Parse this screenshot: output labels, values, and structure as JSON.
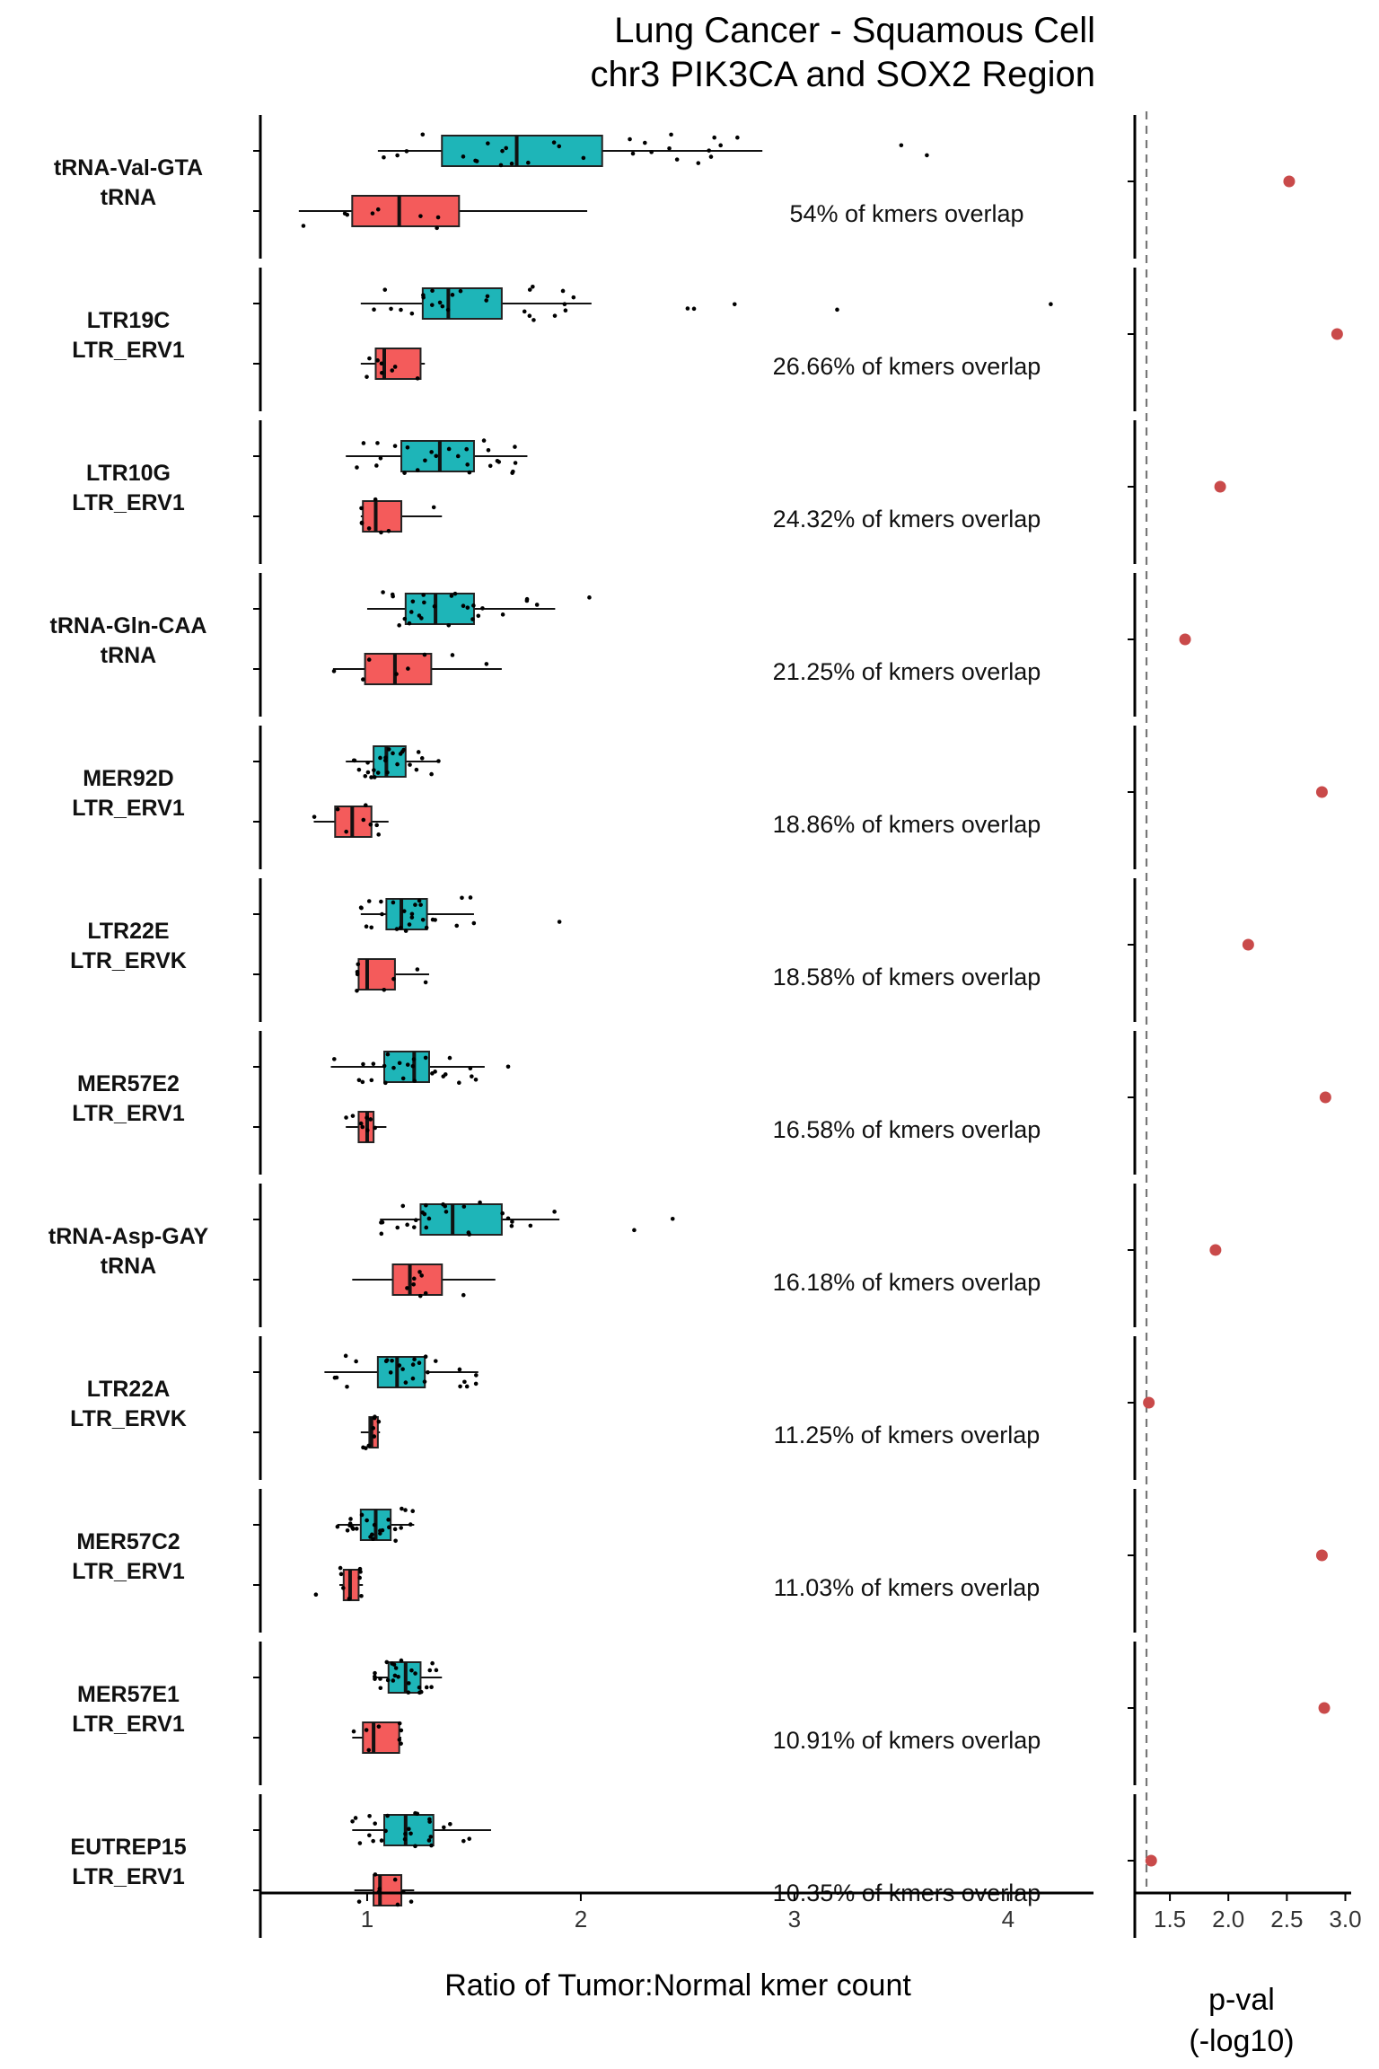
{
  "title": [
    "Lung Cancer - Squamous Cell",
    "chr3 PIK3CA and SOX2 Region"
  ],
  "chart_data": [
    {
      "type": "boxplot",
      "xlabel": "Ratio of Tumor:Normal kmer count",
      "xlim": [
        0.5,
        4.4
      ],
      "xticks": [
        1,
        2,
        3,
        4
      ],
      "series": [
        {
          "key": "tumor",
          "color": "#1eb5b8"
        },
        {
          "key": "normal",
          "color": "#f45b5b"
        }
      ],
      "groups": [
        {
          "name": "tRNA-Val-GTA",
          "family": "tRNA",
          "overlap": "54% of kmers overlap",
          "tumor": {
            "min": 1.05,
            "q1": 1.35,
            "median": 1.7,
            "q3": 2.1,
            "max": 2.85
          },
          "normal": {
            "min": 0.68,
            "q1": 0.93,
            "median": 1.15,
            "q3": 1.43,
            "max": 2.03
          },
          "tumor_outliers": [
            3.62,
            3.5,
            2.6,
            2.55,
            2.3
          ],
          "normal_outliers": []
        },
        {
          "name": "LTR19C",
          "family": "LTR_ERV1",
          "overlap": "26.66% of kmers overlap",
          "tumor": {
            "min": 0.97,
            "q1": 1.26,
            "median": 1.38,
            "q3": 1.63,
            "max": 2.05
          },
          "normal": {
            "min": 0.97,
            "q1": 1.04,
            "median": 1.08,
            "q3": 1.25,
            "max": 1.27
          },
          "tumor_outliers": [
            4.2,
            3.2,
            2.72,
            2.53,
            2.5
          ],
          "normal_outliers": []
        },
        {
          "name": "LTR10G",
          "family": "LTR_ERV1",
          "overlap": "24.32% of kmers overlap",
          "tumor": {
            "min": 0.9,
            "q1": 1.16,
            "median": 1.34,
            "q3": 1.5,
            "max": 1.75
          },
          "normal": {
            "min": 0.97,
            "q1": 0.98,
            "median": 1.04,
            "q3": 1.16,
            "max": 1.35
          },
          "tumor_outliers": [],
          "normal_outliers": []
        },
        {
          "name": "tRNA-Gln-CAA",
          "family": "tRNA",
          "overlap": "21.25% of kmers overlap",
          "tumor": {
            "min": 1.0,
            "q1": 1.18,
            "median": 1.32,
            "q3": 1.5,
            "max": 1.88
          },
          "normal": {
            "min": 0.84,
            "q1": 0.99,
            "median": 1.13,
            "q3": 1.3,
            "max": 1.63
          },
          "tumor_outliers": [
            2.04
          ],
          "normal_outliers": []
        },
        {
          "name": "MER92D",
          "family": "LTR_ERV1",
          "overlap": "18.86% of kmers overlap",
          "tumor": {
            "min": 0.9,
            "q1": 1.03,
            "median": 1.09,
            "q3": 1.18,
            "max": 1.34
          },
          "normal": {
            "min": 0.75,
            "q1": 0.85,
            "median": 0.93,
            "q3": 1.02,
            "max": 1.1
          },
          "tumor_outliers": [],
          "normal_outliers": []
        },
        {
          "name": "LTR22E",
          "family": "LTR_ERVK",
          "overlap": "18.58% of kmers overlap",
          "tumor": {
            "min": 0.97,
            "q1": 1.09,
            "median": 1.16,
            "q3": 1.28,
            "max": 1.5
          },
          "normal": {
            "min": 0.95,
            "q1": 0.96,
            "median": 1.0,
            "q3": 1.13,
            "max": 1.29
          },
          "tumor_outliers": [
            1.9
          ],
          "normal_outliers": []
        },
        {
          "name": "MER57E2",
          "family": "LTR_ERV1",
          "overlap": "16.58% of kmers overlap",
          "tumor": {
            "min": 0.83,
            "q1": 1.08,
            "median": 1.22,
            "q3": 1.29,
            "max": 1.55
          },
          "normal": {
            "min": 0.9,
            "q1": 0.96,
            "median": 1.0,
            "q3": 1.03,
            "max": 1.09
          },
          "tumor_outliers": [
            1.66
          ],
          "normal_outliers": []
        },
        {
          "name": "tRNA-Asp-GAY",
          "family": "tRNA",
          "overlap": "16.18% of kmers overlap",
          "tumor": {
            "min": 1.06,
            "q1": 1.25,
            "median": 1.4,
            "q3": 1.63,
            "max": 1.9
          },
          "normal": {
            "min": 0.93,
            "q1": 1.12,
            "median": 1.2,
            "q3": 1.35,
            "max": 1.6
          },
          "tumor_outliers": [
            2.25,
            2.43
          ],
          "normal_outliers": []
        },
        {
          "name": "LTR22A",
          "family": "LTR_ERVK",
          "overlap": "11.25% of kmers overlap",
          "tumor": {
            "min": 0.8,
            "q1": 1.05,
            "median": 1.14,
            "q3": 1.27,
            "max": 1.52
          },
          "normal": {
            "min": 0.97,
            "q1": 1.01,
            "median": 1.02,
            "q3": 1.05,
            "max": 1.06
          },
          "tumor_outliers": [],
          "normal_outliers": []
        },
        {
          "name": "MER57C2",
          "family": "LTR_ERV1",
          "overlap": "11.03% of kmers overlap",
          "tumor": {
            "min": 0.86,
            "q1": 0.97,
            "median": 1.04,
            "q3": 1.11,
            "max": 1.22
          },
          "normal": {
            "min": 0.87,
            "q1": 0.89,
            "median": 0.92,
            "q3": 0.96,
            "max": 0.98
          },
          "tumor_outliers": [],
          "normal_outliers": [
            0.76
          ]
        },
        {
          "name": "MER57E1",
          "family": "LTR_ERV1",
          "overlap": "10.91% of kmers overlap",
          "tumor": {
            "min": 1.03,
            "q1": 1.1,
            "median": 1.18,
            "q3": 1.25,
            "max": 1.35
          },
          "normal": {
            "min": 0.93,
            "q1": 0.98,
            "median": 1.03,
            "q3": 1.15,
            "max": 1.16
          },
          "tumor_outliers": [],
          "normal_outliers": []
        },
        {
          "name": "EUTREP15",
          "family": "LTR_ERV1",
          "overlap": "10.35% of kmers overlap",
          "tumor": {
            "min": 0.93,
            "q1": 1.08,
            "median": 1.18,
            "q3": 1.31,
            "max": 1.58
          },
          "normal": {
            "min": 0.94,
            "q1": 1.03,
            "median": 1.06,
            "q3": 1.16,
            "max": 1.22
          },
          "tumor_outliers": [],
          "normal_outliers": []
        }
      ]
    },
    {
      "type": "scatter",
      "xlabel": "p-val (-log10)",
      "xlim": [
        1.2,
        3.05
      ],
      "xticks": [
        1.5,
        2.0,
        2.5,
        3.0
      ],
      "xtick_labels": [
        "1.5",
        "2.0",
        "2.5",
        "3.0"
      ],
      "threshold": 1.3,
      "color": "#c94a4a",
      "values": [
        2.52,
        2.93,
        1.93,
        1.63,
        2.8,
        2.17,
        2.83,
        1.89,
        1.32,
        2.8,
        2.82,
        1.34
      ]
    }
  ]
}
